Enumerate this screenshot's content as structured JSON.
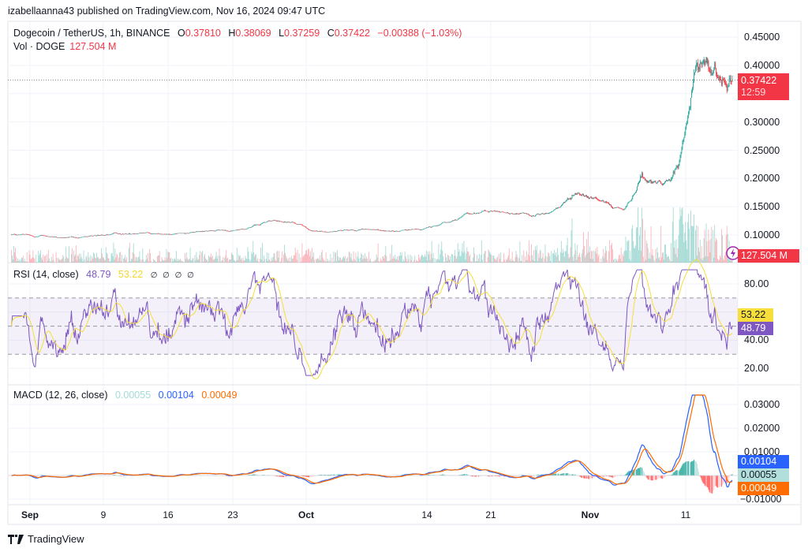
{
  "publisher": "izabellaanna43 published on TradingView.com, Nov 16, 2024 09:47 UTC",
  "legend": {
    "symbol": "Dogecoin / TetherUS, 1h, BINANCE",
    "o_label": "O",
    "o": "0.37810",
    "h_label": "H",
    "h": "0.38069",
    "l_label": "L",
    "l": "0.37259",
    "c_label": "C",
    "c": "0.37422",
    "change": "−0.00388 (−1.03%)",
    "vol_label": "Vol · DOGE",
    "vol": "127.504 M"
  },
  "rsi_legend": {
    "label": "RSI (14, close)",
    "rsi": "48.79",
    "ma": "53.22",
    "na": "∅ ∅ ∅ ∅"
  },
  "macd_legend": {
    "label": "MACD (12, 26, close)",
    "hist": "0.00055",
    "macd": "0.00104",
    "signal": "0.00049"
  },
  "tags": {
    "price": "0.37422",
    "countdown": "12:59",
    "volume": "127.504 M",
    "rsi_ma": "53.22",
    "rsi": "48.79",
    "macd": "0.00104",
    "hist": "0.00055",
    "signal": "0.00049"
  },
  "footer": {
    "brand": "TradingView"
  },
  "colors": {
    "up": "#26a69a",
    "down": "#f23645",
    "rsi": "#7e57c2",
    "rsi_ma": "#f7de3a",
    "macd": "#2962ff",
    "signal": "#ff6d00",
    "hist_light": "#b2dfdb"
  },
  "chart_data": [
    {
      "type": "candlestick",
      "title": "Dogecoin / TetherUS, 1h, BINANCE",
      "x_ticks": [
        "Sep",
        "9",
        "16",
        "23",
        "Oct",
        "14",
        "21",
        "Nov",
        "11"
      ],
      "y_ticks": [
        "0.45000",
        "0.40000",
        "0.30000",
        "0.25000",
        "0.20000",
        "0.15000",
        "0.10000"
      ],
      "ylim": [
        0.09,
        0.46
      ],
      "last_price": 0.37422,
      "dates": [
        "2024-08-30",
        "2024-08-31",
        "2024-09-01",
        "2024-09-02",
        "2024-09-03",
        "2024-09-04",
        "2024-09-05",
        "2024-09-06",
        "2024-09-07",
        "2024-09-08",
        "2024-09-09",
        "2024-09-10",
        "2024-09-11",
        "2024-09-12",
        "2024-09-13",
        "2024-09-14",
        "2024-09-15",
        "2024-09-16",
        "2024-09-17",
        "2024-09-18",
        "2024-09-19",
        "2024-09-20",
        "2024-09-21",
        "2024-09-22",
        "2024-09-23",
        "2024-09-24",
        "2024-09-25",
        "2024-09-26",
        "2024-09-27",
        "2024-09-28",
        "2024-09-29",
        "2024-09-30",
        "2024-10-01",
        "2024-10-02",
        "2024-10-03",
        "2024-10-04",
        "2024-10-05",
        "2024-10-06",
        "2024-10-07",
        "2024-10-08",
        "2024-10-09",
        "2024-10-10",
        "2024-10-11",
        "2024-10-12",
        "2024-10-13",
        "2024-10-14",
        "2024-10-15",
        "2024-10-16",
        "2024-10-17",
        "2024-10-18",
        "2024-10-19",
        "2024-10-20",
        "2024-10-21",
        "2024-10-22",
        "2024-10-23",
        "2024-10-24",
        "2024-10-25",
        "2024-10-26",
        "2024-10-27",
        "2024-10-28",
        "2024-10-29",
        "2024-10-30",
        "2024-10-31",
        "2024-11-01",
        "2024-11-02",
        "2024-11-03",
        "2024-11-04",
        "2024-11-05",
        "2024-11-06",
        "2024-11-07",
        "2024-11-08",
        "2024-11-09",
        "2024-11-10",
        "2024-11-11",
        "2024-11-12",
        "2024-11-13",
        "2024-11-14",
        "2024-11-15",
        "2024-11-16"
      ],
      "closes": [
        0.101,
        0.1,
        0.098,
        0.099,
        0.097,
        0.095,
        0.096,
        0.094,
        0.097,
        0.099,
        0.101,
        0.103,
        0.101,
        0.103,
        0.105,
        0.104,
        0.1,
        0.101,
        0.103,
        0.104,
        0.106,
        0.107,
        0.108,
        0.107,
        0.11,
        0.112,
        0.116,
        0.122,
        0.126,
        0.124,
        0.123,
        0.117,
        0.107,
        0.106,
        0.105,
        0.108,
        0.109,
        0.11,
        0.11,
        0.109,
        0.108,
        0.107,
        0.109,
        0.11,
        0.109,
        0.115,
        0.118,
        0.123,
        0.128,
        0.14,
        0.138,
        0.142,
        0.141,
        0.14,
        0.137,
        0.139,
        0.132,
        0.136,
        0.142,
        0.148,
        0.165,
        0.174,
        0.166,
        0.162,
        0.158,
        0.15,
        0.146,
        0.165,
        0.208,
        0.195,
        0.192,
        0.198,
        0.225,
        0.31,
        0.4,
        0.405,
        0.395,
        0.375,
        0.374
      ],
      "volume_last": "127.504 M"
    },
    {
      "type": "line",
      "title": "RSI (14, close)",
      "y_ticks": [
        "80.00",
        "40.00",
        "20.00"
      ],
      "ylim": [
        15,
        90
      ],
      "bands": [
        30,
        50,
        70
      ],
      "series": [
        {
          "name": "RSI",
          "last": 48.79
        },
        {
          "name": "RSI MA",
          "last": 53.22
        }
      ]
    },
    {
      "type": "line",
      "title": "MACD (12, 26, close)",
      "y_ticks": [
        "0.03000",
        "0.02000",
        "0.01000",
        "−0.01000"
      ],
      "ylim": [
        -0.0105,
        0.0335
      ],
      "series": [
        {
          "name": "MACD",
          "last": 0.00104
        },
        {
          "name": "Signal",
          "last": 0.00049
        },
        {
          "name": "Histogram",
          "last": 0.00055
        }
      ]
    }
  ]
}
